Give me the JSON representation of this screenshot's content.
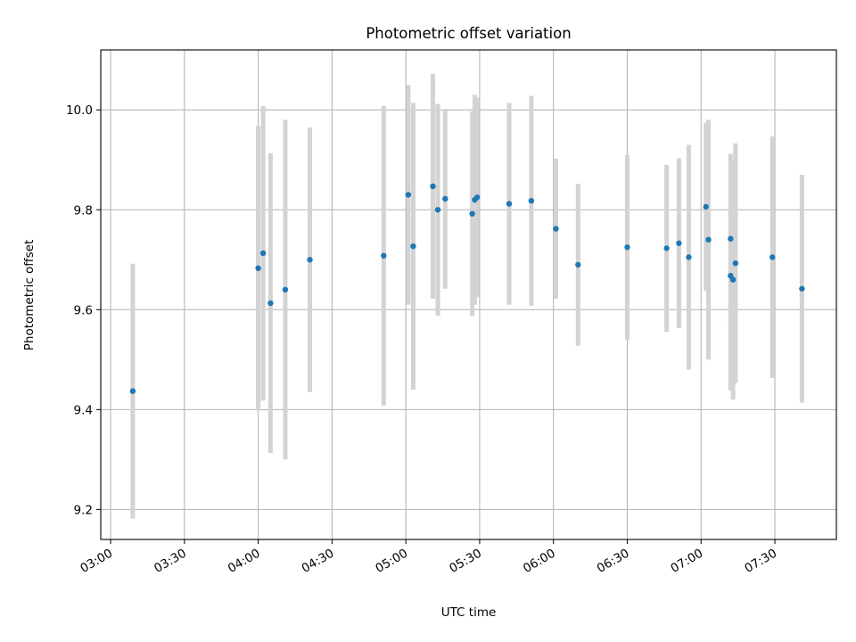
{
  "chart_data": {
    "type": "scatter",
    "title": "Photometric offset variation",
    "xlabel": "UTC time",
    "ylabel": "Photometric offset",
    "x_tick_labels": [
      "03:00",
      "03:30",
      "04:00",
      "04:30",
      "05:00",
      "05:30",
      "06:00",
      "06:30",
      "07:00",
      "07:30"
    ],
    "x_tick_minutes": [
      180,
      210,
      240,
      270,
      300,
      330,
      360,
      390,
      420,
      450
    ],
    "xlim_minutes": [
      176,
      475
    ],
    "y_tick_labels": [
      "9.2",
      "9.4",
      "9.6",
      "9.8",
      "10.0"
    ],
    "y_tick_values": [
      9.2,
      9.4,
      9.6,
      9.8,
      10.0
    ],
    "ylim": [
      9.14,
      10.12
    ],
    "grid": true,
    "marker_color": "#1f77b4",
    "errorbar_color": "#d3d3d3",
    "series": [
      {
        "x": [
          "03:09",
          "04:00",
          "04:02",
          "04:05",
          "04:11",
          "04:21",
          "04:51",
          "05:01",
          "05:03",
          "05:11",
          "05:13",
          "05:16",
          "05:27",
          "05:28",
          "05:29",
          "05:42",
          "05:51",
          "06:01",
          "06:10",
          "06:30",
          "06:46",
          "06:51",
          "06:55",
          "07:02",
          "07:03",
          "07:12",
          "07:12",
          "07:13",
          "07:14",
          "07:29",
          "07:41"
        ],
        "y": [
          9.437,
          9.683,
          9.713,
          9.613,
          9.64,
          9.7,
          9.708,
          9.83,
          9.727,
          9.847,
          9.8,
          9.822,
          9.792,
          9.82,
          9.825,
          9.812,
          9.818,
          9.762,
          9.69,
          9.725,
          9.723,
          9.733,
          9.705,
          9.806,
          9.74,
          9.742,
          9.668,
          9.66,
          9.693,
          9.705,
          9.642
        ],
        "yerr": [
          0.255,
          0.285,
          0.295,
          0.3,
          0.34,
          0.265,
          0.3,
          0.22,
          0.287,
          0.225,
          0.212,
          0.18,
          0.205,
          0.21,
          0.2,
          0.202,
          0.21,
          0.14,
          0.162,
          0.185,
          0.167,
          0.17,
          0.225,
          0.168,
          0.24,
          0.17,
          0.23,
          0.24,
          0.24,
          0.242,
          0.228
        ]
      }
    ]
  }
}
